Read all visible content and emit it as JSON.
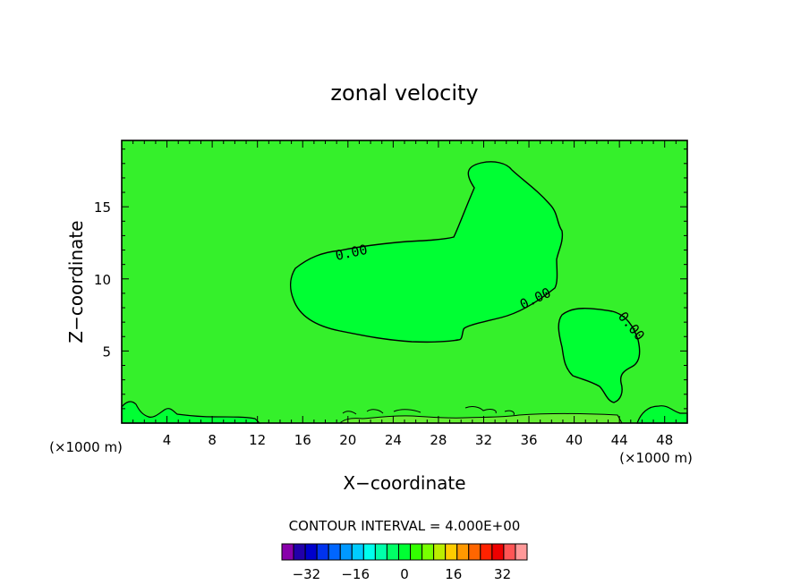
{
  "chart_data": {
    "type": "contour",
    "title": "zonal velocity",
    "xlabel": "X−coordinate",
    "ylabel": "Z−coordinate",
    "x_unit_left": "(×1000 m)",
    "x_unit_right": "(×1000 m)",
    "xlim": [
      0,
      50
    ],
    "ylim": [
      0,
      19.6
    ],
    "x_ticks": [
      4,
      8,
      12,
      16,
      20,
      24,
      28,
      32,
      36,
      40,
      44,
      48
    ],
    "y_ticks": [
      5,
      10,
      15
    ],
    "contour_labels": [
      "0.00",
      "0.00",
      "0.00"
    ],
    "contour_interval_text": "CONTOUR INTERVAL = 4.000E+00",
    "colors": {
      "background_field": "#35f02b",
      "positive_region": "#00ff33",
      "surface_patch": "#66ee33"
    },
    "colorbar": {
      "tick_labels": [
        "−32",
        "−16",
        "0",
        "16",
        "32"
      ],
      "tick_values": [
        -32,
        -16,
        0,
        16,
        32
      ],
      "range": [
        -40,
        40
      ],
      "colors": [
        "#8800aa",
        "#2200aa",
        "#0000cc",
        "#0033ee",
        "#0066ff",
        "#0099ff",
        "#00ccff",
        "#00ffee",
        "#00ffaa",
        "#00ff66",
        "#00ff33",
        "#33ff00",
        "#77ff00",
        "#bbee00",
        "#ffcc00",
        "#ff9900",
        "#ff6600",
        "#ff2200",
        "#ee0000",
        "#ff5555",
        "#ff9999"
      ]
    }
  }
}
